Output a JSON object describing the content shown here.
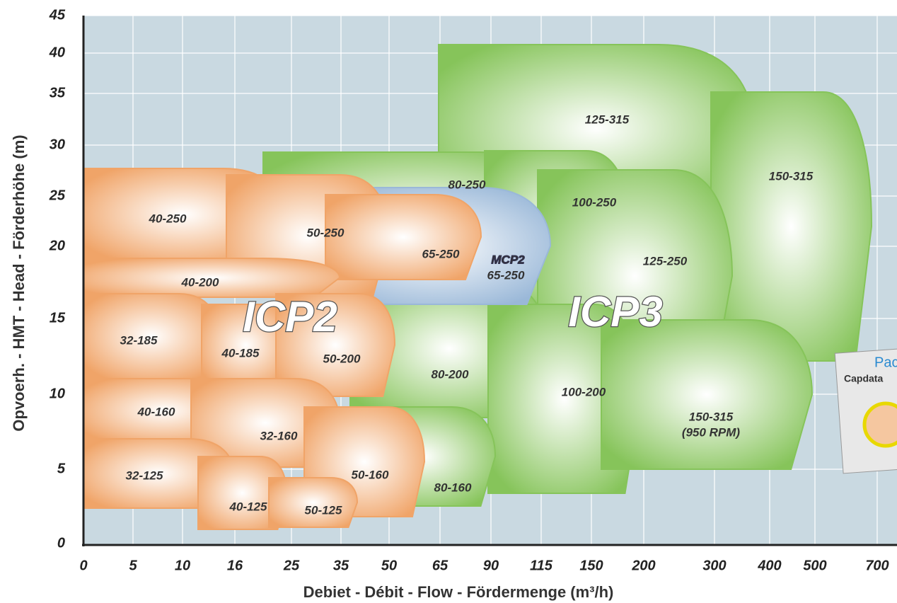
{
  "chart_data": {
    "type": "coverage",
    "x_label": "Debiet - Débit  -  Flow  -  Fördermenge   (m³/h)",
    "y_label": "Opvoerh.  -  HMT  -  Head  -  Förderhöhe  (m)",
    "xticks": [
      0,
      5,
      10,
      16,
      25,
      35,
      50,
      65,
      90,
      115,
      150,
      200,
      300,
      400,
      500,
      700
    ],
    "yticks": [
      0,
      5,
      10,
      15,
      20,
      25,
      30,
      35,
      40,
      45
    ],
    "grid": true,
    "families": [
      {
        "name": "ICP3",
        "color": "#86c45a",
        "regions": [
          {
            "label": "125-315"
          },
          {
            "label": "150-315"
          },
          {
            "label": "80-250"
          },
          {
            "label": "100-250"
          },
          {
            "label": "125-250"
          },
          {
            "label": "80-200"
          },
          {
            "label": "100-200"
          },
          {
            "label": "150-315",
            "note": "(950 RPM)"
          },
          {
            "label": "80-160"
          }
        ]
      },
      {
        "name": "MCP2",
        "color": "#9ab8d8",
        "regions": [
          {
            "label": "65-250"
          }
        ]
      },
      {
        "name": "ICP2",
        "color": "#f0a468",
        "regions": [
          {
            "label": "40-250"
          },
          {
            "label": "50-250"
          },
          {
            "label": "65-250"
          },
          {
            "label": "40-200"
          },
          {
            "label": "32-185"
          },
          {
            "label": "40-185"
          },
          {
            "label": "50-200"
          },
          {
            "label": "40-160"
          },
          {
            "label": "32-160"
          },
          {
            "label": "50-160"
          },
          {
            "label": "32-125"
          },
          {
            "label": "40-125"
          },
          {
            "label": "50-125"
          }
        ]
      }
    ],
    "badge": {
      "line1": "Pac",
      "line2": "Capdata"
    }
  }
}
